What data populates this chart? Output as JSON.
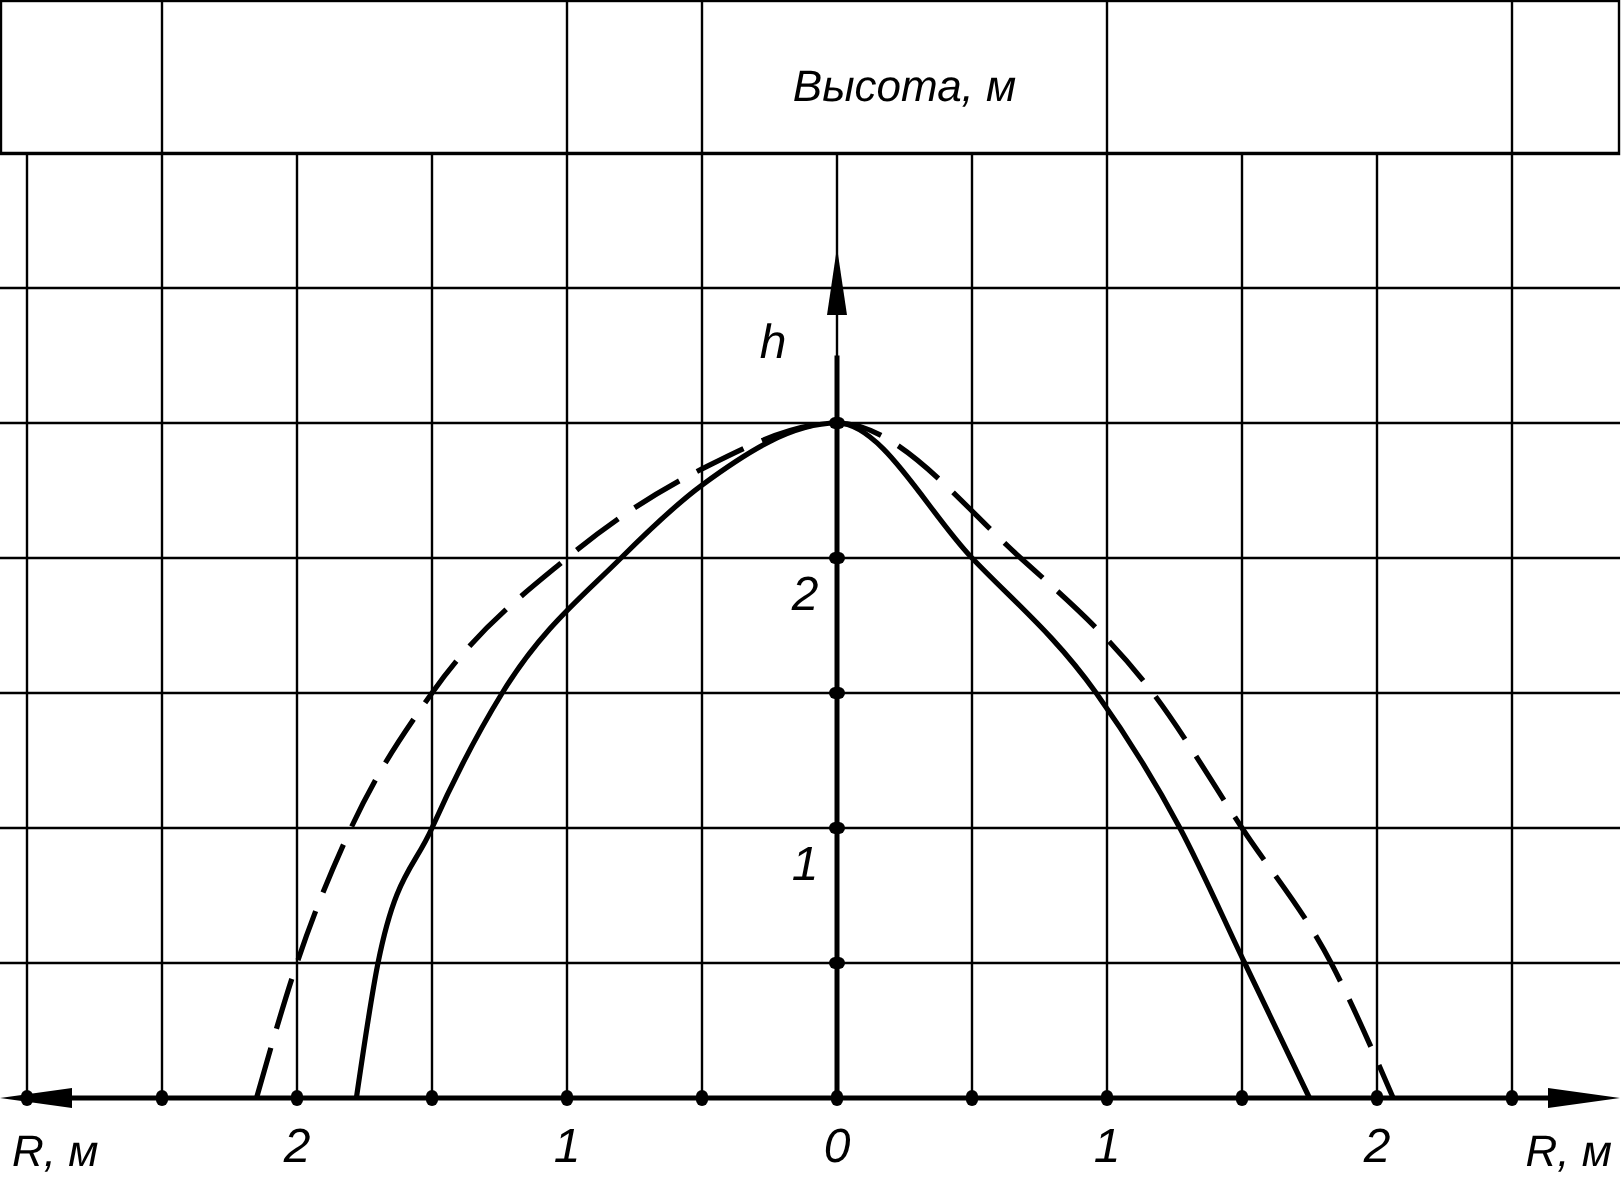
{
  "chart_data": {
    "type": "line",
    "title": "Высота, м",
    "xlabel": "R, м",
    "ylabel": "h",
    "grid": true,
    "xlim": [
      -3.1,
      2.9
    ],
    "ylim": [
      0,
      3.5
    ],
    "xticks": [
      {
        "value": -3,
        "label": null
      },
      {
        "value": -2.5,
        "label": null
      },
      {
        "value": -2,
        "label": "2"
      },
      {
        "value": -1.5,
        "label": null
      },
      {
        "value": -1,
        "label": "1"
      },
      {
        "value": -0.5,
        "label": null
      },
      {
        "value": 0,
        "label": "0"
      },
      {
        "value": 0.5,
        "label": null
      },
      {
        "value": 1,
        "label": "1"
      },
      {
        "value": 1.5,
        "label": null
      },
      {
        "value": 2,
        "label": "2"
      },
      {
        "value": 2.5,
        "label": null
      }
    ],
    "yticks": [
      {
        "value": 0.5,
        "label": null
      },
      {
        "value": 1,
        "label": "1"
      },
      {
        "value": 1.5,
        "label": null
      },
      {
        "value": 2,
        "label": "2"
      },
      {
        "value": 2.5,
        "label": null
      },
      {
        "value": 3,
        "label": null
      },
      {
        "value": 3.5,
        "label": null
      }
    ],
    "series": [
      {
        "color": "#000000",
        "line_style": "solid",
        "x": [
          -1.78,
          -1.7,
          -1.5,
          -1.24,
          -0.8,
          -0.5,
          0,
          0.5,
          0.96,
          1.27,
          1.51,
          1.75
        ],
        "values": [
          0,
          0.5,
          1,
          1.5,
          2,
          2.27,
          2.5,
          2,
          1.5,
          1,
          0.5,
          0
        ]
      },
      {
        "color": "#000000",
        "line_style": "dashed",
        "x": [
          -2.15,
          -2.0,
          -1.8,
          -1.5,
          -1.0,
          -0.5,
          0,
          0.68,
          1.17,
          1.5,
          1.83,
          2.06
        ],
        "values": [
          0,
          0.5,
          1,
          1.5,
          2,
          2.33,
          2.5,
          2,
          1.5,
          1,
          0.5,
          0
        ]
      }
    ]
  }
}
